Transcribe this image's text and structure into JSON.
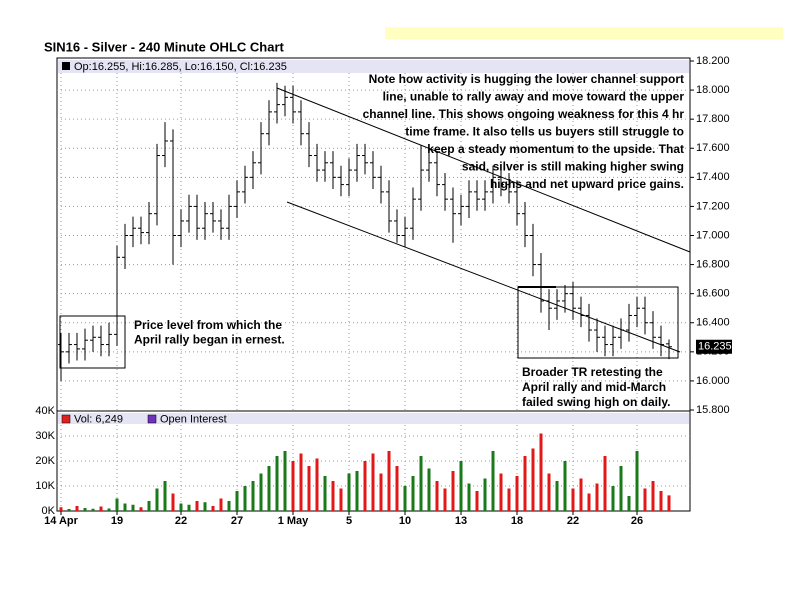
{
  "chart_data": {
    "type": "ohlc",
    "title": "SIN16 - Silver - 240 Minute OHLC Chart",
    "info": "Op:16.255, Hi:16.285, Lo:16.150, Cl:16.235",
    "color": "#000000",
    "grid": true,
    "categories": [
      "14 Apr",
      null,
      null,
      null,
      null,
      null,
      null,
      "19",
      null,
      null,
      null,
      null,
      null,
      null,
      null,
      "22",
      null,
      null,
      null,
      null,
      null,
      null,
      "27",
      null,
      null,
      null,
      null,
      null,
      null,
      "1 May",
      null,
      null,
      null,
      null,
      null,
      null,
      "5",
      null,
      null,
      null,
      null,
      null,
      null,
      "10",
      null,
      null,
      null,
      null,
      null,
      null,
      "13",
      null,
      null,
      null,
      null,
      null,
      null,
      "18",
      null,
      null,
      null,
      null,
      null,
      null,
      "22",
      null,
      null,
      null,
      null,
      null,
      null,
      null,
      "26",
      null,
      null,
      null,
      null
    ],
    "open": [
      16.25,
      16.2,
      16.25,
      16.22,
      16.28,
      16.3,
      16.25,
      16.32,
      16.85,
      17.0,
      17.05,
      17.02,
      17.15,
      17.55,
      17.65,
      17.0,
      17.1,
      17.2,
      17.05,
      17.15,
      17.1,
      17.05,
      17.2,
      17.3,
      17.4,
      17.5,
      17.7,
      17.85,
      17.9,
      17.95,
      17.85,
      17.7,
      17.55,
      17.45,
      17.5,
      17.4,
      17.35,
      17.45,
      17.55,
      17.5,
      17.4,
      17.3,
      17.1,
      17.0,
      17.05,
      17.25,
      17.45,
      17.5,
      17.35,
      17.25,
      17.15,
      17.2,
      17.3,
      17.25,
      17.3,
      17.4,
      17.35,
      17.3,
      17.15,
      17.0,
      16.8,
      16.55,
      16.5,
      16.55,
      16.6,
      16.5,
      16.45,
      16.35,
      16.3,
      16.25,
      16.3,
      16.35,
      16.45,
      16.5,
      16.4,
      16.3,
      16.255
    ],
    "high": [
      16.33,
      16.33,
      16.33,
      16.36,
      16.38,
      16.38,
      16.4,
      16.93,
      17.08,
      17.13,
      17.13,
      17.23,
      17.63,
      17.78,
      17.73,
      17.18,
      17.28,
      17.28,
      17.23,
      17.23,
      17.18,
      17.28,
      17.38,
      17.48,
      17.58,
      17.78,
      17.93,
      18.05,
      18.03,
      18.03,
      17.93,
      17.78,
      17.63,
      17.58,
      17.58,
      17.48,
      17.53,
      17.63,
      17.63,
      17.58,
      17.48,
      17.38,
      17.18,
      17.13,
      17.33,
      17.62,
      17.58,
      17.58,
      17.43,
      17.33,
      17.28,
      17.38,
      17.38,
      17.38,
      17.48,
      17.48,
      17.43,
      17.38,
      17.23,
      17.08,
      16.88,
      16.63,
      16.63,
      16.66,
      16.68,
      16.58,
      16.53,
      16.43,
      16.38,
      16.38,
      16.43,
      16.53,
      16.58,
      16.58,
      16.48,
      16.38,
      16.285
    ],
    "low": [
      16.0,
      16.12,
      16.14,
      16.14,
      16.2,
      16.17,
      16.17,
      16.24,
      16.77,
      16.92,
      16.94,
      16.94,
      17.07,
      17.47,
      16.8,
      16.92,
      17.02,
      16.97,
      16.97,
      17.02,
      16.97,
      16.97,
      17.12,
      17.22,
      17.32,
      17.42,
      17.62,
      17.77,
      17.82,
      17.77,
      17.62,
      17.47,
      17.37,
      17.37,
      17.32,
      17.27,
      17.27,
      17.37,
      17.42,
      17.32,
      17.22,
      17.02,
      16.95,
      16.92,
      16.97,
      17.17,
      17.37,
      17.27,
      17.17,
      16.95,
      17.07,
      17.12,
      17.17,
      17.17,
      17.22,
      17.27,
      17.22,
      17.07,
      16.92,
      16.72,
      16.47,
      16.35,
      16.42,
      16.47,
      16.42,
      16.37,
      16.27,
      16.2,
      16.17,
      16.17,
      16.22,
      16.27,
      16.37,
      16.32,
      16.22,
      16.17,
      16.15
    ],
    "close": [
      16.2,
      16.25,
      16.22,
      16.28,
      16.3,
      16.25,
      16.32,
      16.85,
      17.0,
      17.05,
      17.02,
      17.15,
      17.55,
      17.65,
      17.0,
      17.1,
      17.2,
      17.05,
      17.15,
      17.1,
      17.05,
      17.2,
      17.3,
      17.4,
      17.5,
      17.7,
      17.85,
      17.9,
      17.95,
      17.85,
      17.7,
      17.55,
      17.45,
      17.5,
      17.4,
      17.35,
      17.45,
      17.55,
      17.5,
      17.4,
      17.3,
      17.1,
      17.0,
      17.05,
      17.25,
      17.45,
      17.5,
      17.35,
      17.25,
      17.15,
      17.2,
      17.3,
      17.25,
      17.3,
      17.4,
      17.35,
      17.3,
      17.15,
      17.0,
      16.8,
      16.55,
      16.5,
      16.55,
      16.6,
      16.5,
      16.45,
      16.35,
      16.3,
      16.25,
      16.3,
      16.35,
      16.45,
      16.5,
      16.4,
      16.3,
      16.25,
      16.235
    ],
    "ylim": [
      15.8,
      18.2
    ],
    "yticks": [
      {
        "value": 15.8,
        "label": "15.800"
      },
      {
        "value": 16.0,
        "label": "16.000"
      },
      {
        "value": 16.2,
        "label": "16.200"
      },
      {
        "value": 16.4,
        "label": "16.400"
      },
      {
        "value": 16.6,
        "label": "16.600"
      },
      {
        "value": 16.8,
        "label": "16.800"
      },
      {
        "value": 17.0,
        "label": "17.000"
      },
      {
        "value": 17.2,
        "label": "17.200"
      },
      {
        "value": 17.4,
        "label": "17.400"
      },
      {
        "value": 17.6,
        "label": "17.600"
      },
      {
        "value": 17.8,
        "label": "17.800"
      },
      {
        "value": 18.0,
        "label": "18.000"
      },
      {
        "value": 18.2,
        "label": "18.200"
      }
    ],
    "volume": {
      "legend": [
        {
          "name": "Vol: 6,249",
          "color": "#e02020"
        },
        {
          "name": "Open Interest",
          "color": "#7030c0"
        }
      ],
      "up_color": "#1a7a1a",
      "down_color": "#e01818",
      "values": [
        1500,
        800,
        2000,
        1200,
        900,
        1800,
        1000,
        5000,
        3000,
        2500,
        1500,
        4000,
        9000,
        12000,
        7000,
        3000,
        2500,
        4000,
        3500,
        2000,
        5000,
        4000,
        8000,
        10000,
        12000,
        15000,
        18000,
        22000,
        24000,
        20000,
        23000,
        18000,
        21000,
        14000,
        12000,
        9000,
        15000,
        16000,
        20000,
        23000,
        15000,
        24000,
        18000,
        10000,
        14000,
        22000,
        17000,
        12000,
        9000,
        16000,
        20000,
        11000,
        8000,
        13000,
        24000,
        15000,
        9000,
        14000,
        22000,
        25000,
        31000,
        15000,
        12000,
        20000,
        9000,
        13000,
        7000,
        11000,
        22000,
        10000,
        18000,
        6000,
        24000,
        9000,
        12000,
        8000,
        6249
      ],
      "ylim": [
        0,
        40000
      ],
      "yticks": [
        {
          "value": 0,
          "label": "0K"
        },
        {
          "value": 10000,
          "label": "10K"
        },
        {
          "value": 20000,
          "label": "20K"
        },
        {
          "value": 30000,
          "label": "30K"
        },
        {
          "value": 40000,
          "label": "40K"
        }
      ]
    },
    "annotations": [
      {
        "lines": [
          "Note how activity is hugging the lower channel support",
          "line, unable to rally away and move toward the upper",
          "channel line.  This shows ongoing weakness for this 4 hr",
          "time frame.  It also tells us buyers still struggle to",
          "keep a steady momentum to the upside.  That",
          "said, silver is still making higher swing",
          "highs and net upward price gains."
        ]
      },
      {
        "lines": [
          "Price level from which the",
          "April rally began in ernest."
        ]
      },
      {
        "lines": [
          "Broader TR retesting the",
          "April rally and mid-March",
          "failed swing high on daily."
        ]
      }
    ]
  }
}
